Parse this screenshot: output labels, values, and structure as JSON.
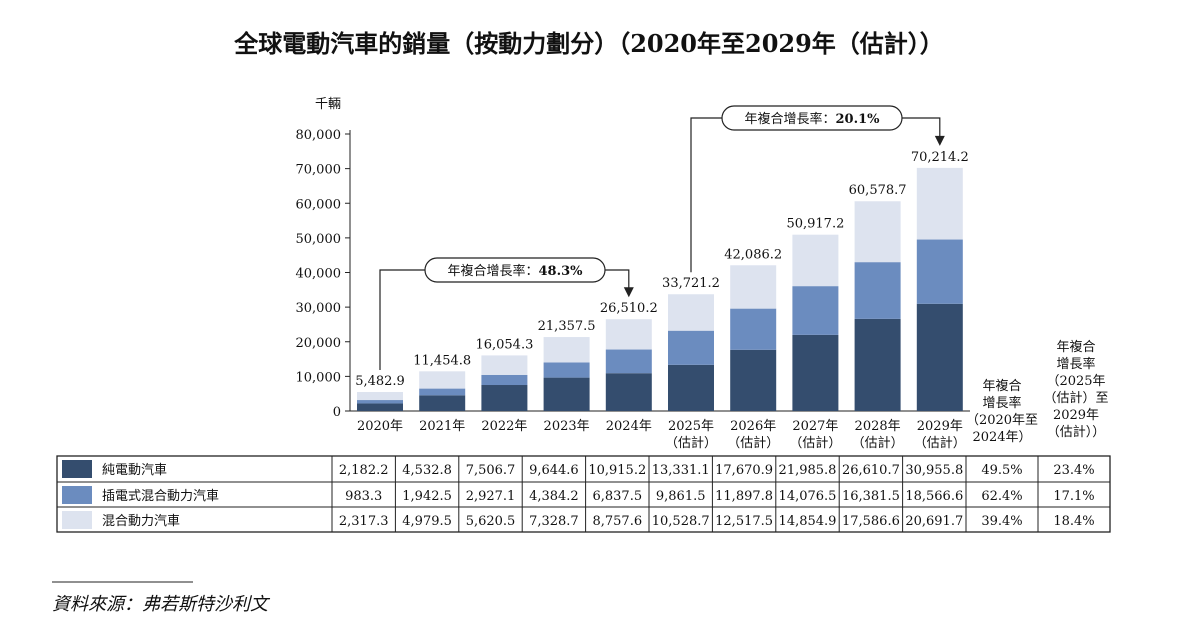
{
  "chart_data": {
    "type": "bar",
    "stacked": true,
    "title": "全球電動汽車的銷量（按動力劃分）（2020年至2029年（估計））",
    "ylabel": "千輛",
    "ylim": [
      0,
      80000
    ],
    "yticks": [
      "0",
      "10,000",
      "20,000",
      "30,000",
      "40,000",
      "50,000",
      "60,000",
      "70,000",
      "80,000"
    ],
    "categories": [
      [
        "2020年",
        ""
      ],
      [
        "2021年",
        ""
      ],
      [
        "2022年",
        ""
      ],
      [
        "2023年",
        ""
      ],
      [
        "2024年",
        ""
      ],
      [
        "2025年",
        "（估計）"
      ],
      [
        "2026年",
        "（估計）"
      ],
      [
        "2027年",
        "（估計）"
      ],
      [
        "2028年",
        "（估計）"
      ],
      [
        "2029年",
        "（估計）"
      ]
    ],
    "totals": [
      "5,482.9",
      "11,454.8",
      "16,054.3",
      "21,357.5",
      "26,510.2",
      "33,721.2",
      "42,086.2",
      "50,917.2",
      "60,578.7",
      "70,214.2"
    ],
    "series": [
      {
        "name": "純電動汽車",
        "color": "#344d6e",
        "values": [
          2182.2,
          4532.8,
          7506.7,
          9644.6,
          10915.2,
          13331.1,
          17670.9,
          21985.8,
          26610.7,
          30955.8
        ],
        "labels": [
          "2,182.2",
          "4,532.8",
          "7,506.7",
          "9,644.6",
          "10,915.2",
          "13,331.1",
          "17,670.9",
          "21,985.8",
          "26,610.7",
          "30,955.8"
        ],
        "cagr": [
          "49.5%",
          "23.4%"
        ]
      },
      {
        "name": "插電式混合動力汽車",
        "color": "#6b8cbf",
        "values": [
          983.3,
          1942.5,
          2927.1,
          4384.2,
          6837.5,
          9861.5,
          11897.8,
          14076.5,
          16381.5,
          18566.6
        ],
        "labels": [
          "983.3",
          "1,942.5",
          "2,927.1",
          "4,384.2",
          "6,837.5",
          "9,861.5",
          "11,897.8",
          "14,076.5",
          "16,381.5",
          "18,566.6"
        ],
        "cagr": [
          "62.4%",
          "17.1%"
        ]
      },
      {
        "name": "混合動力汽車",
        "color": "#dde3ef",
        "values": [
          2317.3,
          4979.5,
          5620.5,
          7328.7,
          8757.6,
          10528.7,
          12517.5,
          14854.9,
          17586.6,
          20691.7
        ],
        "labels": [
          "2,317.3",
          "4,979.5",
          "5,620.5",
          "7,328.7",
          "8,757.6",
          "10,528.7",
          "12,517.5",
          "14,854.9",
          "17,586.6",
          "20,691.7"
        ],
        "cagr": [
          "39.4%",
          "18.4%"
        ]
      }
    ],
    "cagr_headers": [
      [
        "年複合",
        "增長率",
        "（2020年至",
        "2024年）"
      ],
      [
        "年複合",
        "增長率",
        "（2025年",
        "（估計）至",
        "2029年",
        "（估計））"
      ]
    ],
    "annotations": [
      {
        "label": "年複合增長率：",
        "value": "48.3%",
        "from": "2020年",
        "to": "2024年"
      },
      {
        "label": "年複合增長率：",
        "value": "20.1%",
        "from": "2025年",
        "to": "2029年"
      }
    ],
    "grid": false,
    "legend": "table-below"
  },
  "source": "資料來源：弗若斯特沙利文"
}
